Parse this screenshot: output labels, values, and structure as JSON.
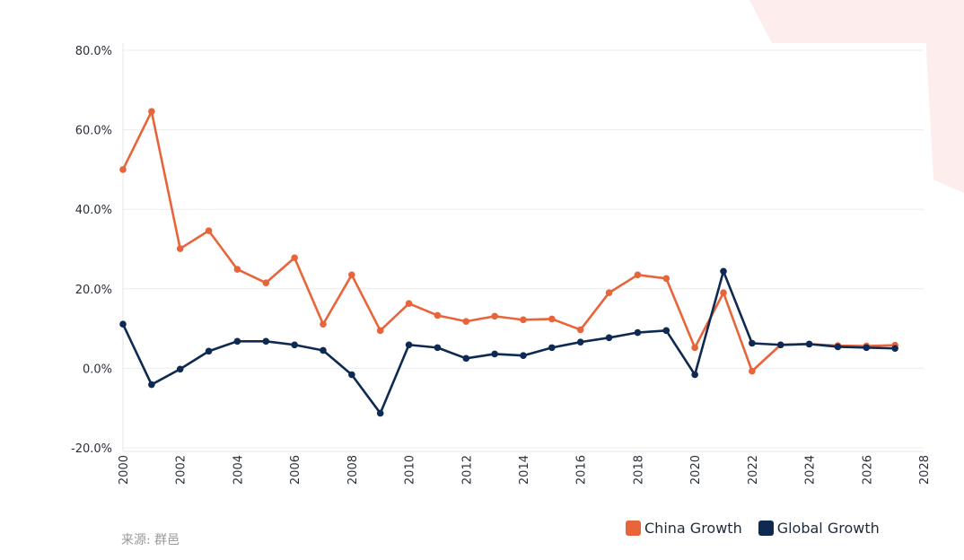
{
  "chart_data": {
    "type": "line",
    "title": "",
    "xlabel": "",
    "ylabel": "",
    "x": [
      2000,
      2001,
      2002,
      2003,
      2004,
      2005,
      2006,
      2007,
      2008,
      2009,
      2010,
      2011,
      2012,
      2013,
      2014,
      2015,
      2016,
      2017,
      2018,
      2019,
      2020,
      2021,
      2022,
      2023,
      2024,
      2025,
      2026,
      2027
    ],
    "xlim": [
      2000,
      2028
    ],
    "xticks": [
      "2000",
      "2002",
      "2004",
      "2006",
      "2008",
      "2010",
      "2012",
      "2014",
      "2016",
      "2018",
      "2020",
      "2022",
      "2024",
      "2026",
      "2028"
    ],
    "ylim": [
      -20,
      80
    ],
    "yticks": [
      "-20.0%",
      "0.0%",
      "20.0%",
      "40.0%",
      "60.0%",
      "80.0%"
    ],
    "grid": true,
    "legend_position": "bottom-right",
    "series": [
      {
        "name": "China Growth",
        "color": "#E8643A",
        "values": [
          50.0,
          64.6,
          30.1,
          34.6,
          24.9,
          21.5,
          27.8,
          11.1,
          23.5,
          9.5,
          16.3,
          13.3,
          11.8,
          13.1,
          12.2,
          12.4,
          9.7,
          19.0,
          23.5,
          22.6,
          5.2,
          19.0,
          -0.7,
          5.9,
          6.1,
          5.7,
          5.6,
          5.8
        ]
      },
      {
        "name": "Global Growth",
        "color": "#0F2A52",
        "values": [
          11.1,
          -4.1,
          -0.2,
          4.3,
          6.8,
          6.8,
          5.9,
          4.5,
          -1.6,
          -11.3,
          5.9,
          5.2,
          2.5,
          3.6,
          3.2,
          5.2,
          6.6,
          7.7,
          9.0,
          9.5,
          -1.6,
          24.4,
          6.3,
          5.9,
          6.1,
          5.4,
          5.2,
          5.0
        ]
      }
    ]
  },
  "source": "来源: 群邑",
  "decoration_color": "#FDECEC"
}
